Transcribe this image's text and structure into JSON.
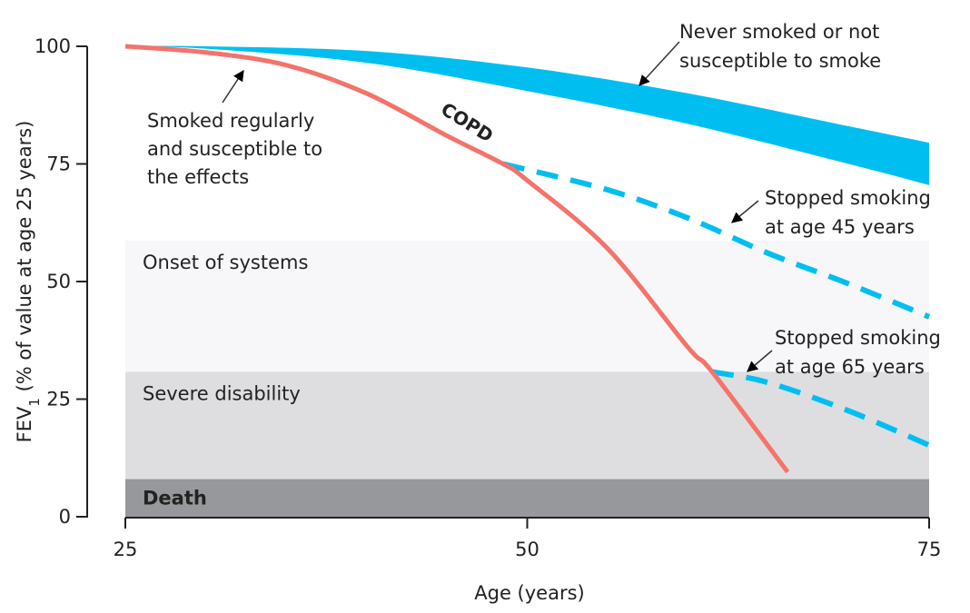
{
  "chart_data": {
    "type": "line",
    "xlabel": "Age (years)",
    "ylabel": {
      "main": "FEV",
      "sub": "1",
      "rest": " (% of value at age 25 years)"
    },
    "xlim": [
      25,
      75
    ],
    "ylim": [
      0,
      100
    ],
    "xticks": [
      "25",
      "50",
      "75"
    ],
    "yticks": [
      "0",
      "25",
      "50",
      "75",
      "100"
    ],
    "grid": false,
    "colors": {
      "smoker": "#f4736b",
      "never": "#00bff0",
      "stopped": "#00bff0",
      "onset": "#f7f7f9",
      "severe": "#dedee0",
      "death": "#97989b"
    },
    "bands": [
      {
        "name": "Onset of systems",
        "from": 30.8,
        "to": 58.7
      },
      {
        "name": "Severe disability",
        "from": 8,
        "to": 30.8
      },
      {
        "name": "Death",
        "from": 0,
        "to": 8
      }
    ],
    "series": [
      {
        "name": "Smoked regularly and susceptible to the effects",
        "style": "solid",
        "x": [
          25,
          30,
          35,
          40,
          45,
          48.5,
          50,
          55,
          60,
          61.5,
          66.2
        ],
        "y": [
          100,
          98.7,
          96,
          90,
          81,
          75,
          71.5,
          57,
          36,
          30.8,
          9.5
        ]
      },
      {
        "name": "Never smoked or not susceptible to smoke",
        "style": "band",
        "x": [
          25,
          30,
          40,
          50,
          60,
          70,
          75
        ],
        "y_upper": [
          100,
          100,
          99,
          95.5,
          90,
          83,
          79.5
        ],
        "y_lower": [
          100,
          99.5,
          96.5,
          90.5,
          83.5,
          75,
          70.5
        ]
      },
      {
        "name": "Stopped smoking at age 45 years",
        "style": "dashed",
        "x": [
          48.5,
          55,
          60,
          65,
          70,
          75
        ],
        "y": [
          75,
          69.5,
          63.5,
          56,
          49.5,
          42.5
        ]
      },
      {
        "name": "Stopped smoking at age 65 years",
        "style": "dashed",
        "x": [
          61.5,
          65,
          70,
          75
        ],
        "y": [
          30.8,
          28.5,
          22.5,
          15.2
        ]
      }
    ],
    "annotations": {
      "copd": "COPD",
      "smoker": [
        "Smoked regularly",
        "and susceptible to",
        "the effects"
      ],
      "never": [
        "Never smoked or not",
        "susceptible to smoke"
      ],
      "stop45": [
        "Stopped smoking",
        "at age 45 years"
      ],
      "stop65": [
        "Stopped smoking",
        "at age 65 years"
      ]
    }
  }
}
